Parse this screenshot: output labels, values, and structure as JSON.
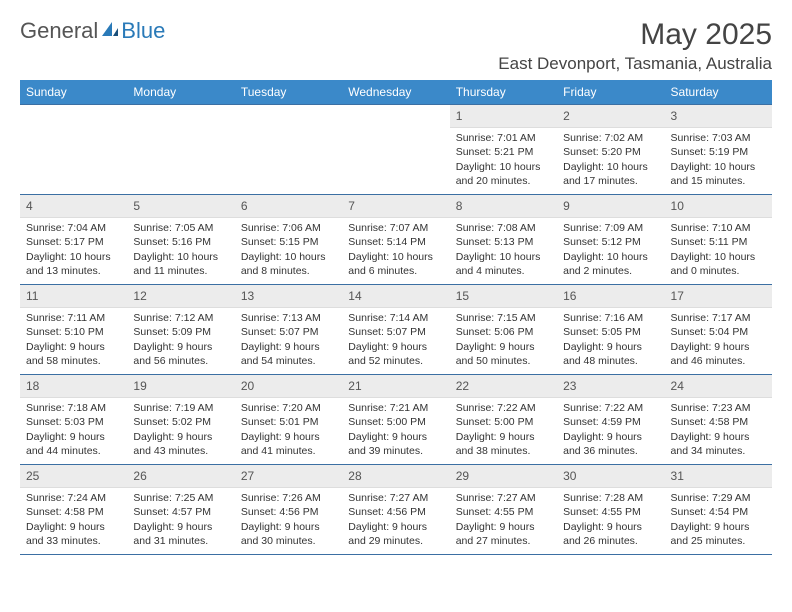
{
  "brand": {
    "part1": "General",
    "part2": "Blue"
  },
  "title": "May 2025",
  "location": "East Devonport, Tasmania, Australia",
  "colors": {
    "header_bg": "#3b89c9",
    "header_text": "#ffffff",
    "daynum_bg": "#ececec",
    "border": "#3b6fa3",
    "brand_blue": "#2a7ab8"
  },
  "weekdays": [
    "Sunday",
    "Monday",
    "Tuesday",
    "Wednesday",
    "Thursday",
    "Friday",
    "Saturday"
  ],
  "weeks": [
    [
      {
        "empty": true
      },
      {
        "empty": true
      },
      {
        "empty": true
      },
      {
        "empty": true
      },
      {
        "num": "1",
        "sunrise": "Sunrise: 7:01 AM",
        "sunset": "Sunset: 5:21 PM",
        "daylight": "Daylight: 10 hours and 20 minutes."
      },
      {
        "num": "2",
        "sunrise": "Sunrise: 7:02 AM",
        "sunset": "Sunset: 5:20 PM",
        "daylight": "Daylight: 10 hours and 17 minutes."
      },
      {
        "num": "3",
        "sunrise": "Sunrise: 7:03 AM",
        "sunset": "Sunset: 5:19 PM",
        "daylight": "Daylight: 10 hours and 15 minutes."
      }
    ],
    [
      {
        "num": "4",
        "sunrise": "Sunrise: 7:04 AM",
        "sunset": "Sunset: 5:17 PM",
        "daylight": "Daylight: 10 hours and 13 minutes."
      },
      {
        "num": "5",
        "sunrise": "Sunrise: 7:05 AM",
        "sunset": "Sunset: 5:16 PM",
        "daylight": "Daylight: 10 hours and 11 minutes."
      },
      {
        "num": "6",
        "sunrise": "Sunrise: 7:06 AM",
        "sunset": "Sunset: 5:15 PM",
        "daylight": "Daylight: 10 hours and 8 minutes."
      },
      {
        "num": "7",
        "sunrise": "Sunrise: 7:07 AM",
        "sunset": "Sunset: 5:14 PM",
        "daylight": "Daylight: 10 hours and 6 minutes."
      },
      {
        "num": "8",
        "sunrise": "Sunrise: 7:08 AM",
        "sunset": "Sunset: 5:13 PM",
        "daylight": "Daylight: 10 hours and 4 minutes."
      },
      {
        "num": "9",
        "sunrise": "Sunrise: 7:09 AM",
        "sunset": "Sunset: 5:12 PM",
        "daylight": "Daylight: 10 hours and 2 minutes."
      },
      {
        "num": "10",
        "sunrise": "Sunrise: 7:10 AM",
        "sunset": "Sunset: 5:11 PM",
        "daylight": "Daylight: 10 hours and 0 minutes."
      }
    ],
    [
      {
        "num": "11",
        "sunrise": "Sunrise: 7:11 AM",
        "sunset": "Sunset: 5:10 PM",
        "daylight": "Daylight: 9 hours and 58 minutes."
      },
      {
        "num": "12",
        "sunrise": "Sunrise: 7:12 AM",
        "sunset": "Sunset: 5:09 PM",
        "daylight": "Daylight: 9 hours and 56 minutes."
      },
      {
        "num": "13",
        "sunrise": "Sunrise: 7:13 AM",
        "sunset": "Sunset: 5:07 PM",
        "daylight": "Daylight: 9 hours and 54 minutes."
      },
      {
        "num": "14",
        "sunrise": "Sunrise: 7:14 AM",
        "sunset": "Sunset: 5:07 PM",
        "daylight": "Daylight: 9 hours and 52 minutes."
      },
      {
        "num": "15",
        "sunrise": "Sunrise: 7:15 AM",
        "sunset": "Sunset: 5:06 PM",
        "daylight": "Daylight: 9 hours and 50 minutes."
      },
      {
        "num": "16",
        "sunrise": "Sunrise: 7:16 AM",
        "sunset": "Sunset: 5:05 PM",
        "daylight": "Daylight: 9 hours and 48 minutes."
      },
      {
        "num": "17",
        "sunrise": "Sunrise: 7:17 AM",
        "sunset": "Sunset: 5:04 PM",
        "daylight": "Daylight: 9 hours and 46 minutes."
      }
    ],
    [
      {
        "num": "18",
        "sunrise": "Sunrise: 7:18 AM",
        "sunset": "Sunset: 5:03 PM",
        "daylight": "Daylight: 9 hours and 44 minutes."
      },
      {
        "num": "19",
        "sunrise": "Sunrise: 7:19 AM",
        "sunset": "Sunset: 5:02 PM",
        "daylight": "Daylight: 9 hours and 43 minutes."
      },
      {
        "num": "20",
        "sunrise": "Sunrise: 7:20 AM",
        "sunset": "Sunset: 5:01 PM",
        "daylight": "Daylight: 9 hours and 41 minutes."
      },
      {
        "num": "21",
        "sunrise": "Sunrise: 7:21 AM",
        "sunset": "Sunset: 5:00 PM",
        "daylight": "Daylight: 9 hours and 39 minutes."
      },
      {
        "num": "22",
        "sunrise": "Sunrise: 7:22 AM",
        "sunset": "Sunset: 5:00 PM",
        "daylight": "Daylight: 9 hours and 38 minutes."
      },
      {
        "num": "23",
        "sunrise": "Sunrise: 7:22 AM",
        "sunset": "Sunset: 4:59 PM",
        "daylight": "Daylight: 9 hours and 36 minutes."
      },
      {
        "num": "24",
        "sunrise": "Sunrise: 7:23 AM",
        "sunset": "Sunset: 4:58 PM",
        "daylight": "Daylight: 9 hours and 34 minutes."
      }
    ],
    [
      {
        "num": "25",
        "sunrise": "Sunrise: 7:24 AM",
        "sunset": "Sunset: 4:58 PM",
        "daylight": "Daylight: 9 hours and 33 minutes."
      },
      {
        "num": "26",
        "sunrise": "Sunrise: 7:25 AM",
        "sunset": "Sunset: 4:57 PM",
        "daylight": "Daylight: 9 hours and 31 minutes."
      },
      {
        "num": "27",
        "sunrise": "Sunrise: 7:26 AM",
        "sunset": "Sunset: 4:56 PM",
        "daylight": "Daylight: 9 hours and 30 minutes."
      },
      {
        "num": "28",
        "sunrise": "Sunrise: 7:27 AM",
        "sunset": "Sunset: 4:56 PM",
        "daylight": "Daylight: 9 hours and 29 minutes."
      },
      {
        "num": "29",
        "sunrise": "Sunrise: 7:27 AM",
        "sunset": "Sunset: 4:55 PM",
        "daylight": "Daylight: 9 hours and 27 minutes."
      },
      {
        "num": "30",
        "sunrise": "Sunrise: 7:28 AM",
        "sunset": "Sunset: 4:55 PM",
        "daylight": "Daylight: 9 hours and 26 minutes."
      },
      {
        "num": "31",
        "sunrise": "Sunrise: 7:29 AM",
        "sunset": "Sunset: 4:54 PM",
        "daylight": "Daylight: 9 hours and 25 minutes."
      }
    ]
  ]
}
